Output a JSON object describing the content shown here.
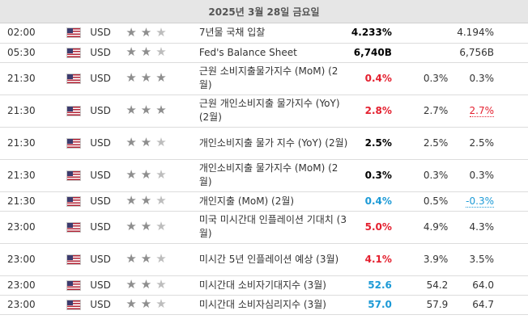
{
  "date_header": "2025년 3월 28일 금요일",
  "rows": [
    {
      "time": "02:00",
      "currency": "USD",
      "stars": 2,
      "event": "7년물 국채 입찰",
      "actual": "4.233%",
      "actual_color": "neutral",
      "forecast": "",
      "previous": "4.194%",
      "prev_style": "",
      "tall": false
    },
    {
      "time": "05:30",
      "currency": "USD",
      "stars": 2,
      "event": "Fed's Balance Sheet",
      "actual": "6,740B",
      "actual_color": "neutral",
      "forecast": "",
      "previous": "6,756B",
      "prev_style": "",
      "tall": false
    },
    {
      "time": "21:30",
      "currency": "USD",
      "stars": 3,
      "event": "근원 소비지출물가지수 (MoM) (2월)",
      "actual": "0.4%",
      "actual_color": "up",
      "forecast": "0.3%",
      "previous": "0.3%",
      "prev_style": "",
      "tall": true
    },
    {
      "time": "21:30",
      "currency": "USD",
      "stars": 3,
      "event": "근원 개인소비지출 물가지수 (YoY) (2월)",
      "actual": "2.8%",
      "actual_color": "up",
      "forecast": "2.7%",
      "previous": "2.7%",
      "prev_style": "revised-red",
      "tall": true
    },
    {
      "time": "21:30",
      "currency": "USD",
      "stars": 2,
      "event": "개인소비지출 물가 지수 (YoY) (2월)",
      "actual": "2.5%",
      "actual_color": "neutral",
      "forecast": "2.5%",
      "previous": "2.5%",
      "prev_style": "",
      "tall": true
    },
    {
      "time": "21:30",
      "currency": "USD",
      "stars": 2,
      "event": "개인소비지출 물가지수 (MoM) (2월)",
      "actual": "0.3%",
      "actual_color": "neutral",
      "forecast": "0.3%",
      "previous": "0.3%",
      "prev_style": "",
      "tall": true
    },
    {
      "time": "21:30",
      "currency": "USD",
      "stars": 2,
      "event": "개인지출 (MoM) (2월)",
      "actual": "0.4%",
      "actual_color": "down",
      "forecast": "0.5%",
      "previous": "-0.3%",
      "prev_style": "revised-blue",
      "tall": false
    },
    {
      "time": "23:00",
      "currency": "USD",
      "stars": 2,
      "event": "미국 미시간대 인플레이션 기대치 (3월)",
      "actual": "5.0%",
      "actual_color": "up",
      "forecast": "4.9%",
      "previous": "4.3%",
      "prev_style": "",
      "tall": true
    },
    {
      "time": "23:00",
      "currency": "USD",
      "stars": 2,
      "event": "미시간 5년 인플레이션 예상 (3월)",
      "actual": "4.1%",
      "actual_color": "up",
      "forecast": "3.9%",
      "previous": "3.5%",
      "prev_style": "",
      "tall": true
    },
    {
      "time": "23:00",
      "currency": "USD",
      "stars": 2,
      "event": "미시간대 소비자기대지수 (3월)",
      "actual": "52.6",
      "actual_color": "down",
      "forecast": "54.2",
      "previous": "64.0",
      "prev_style": "",
      "tall": false
    },
    {
      "time": "23:00",
      "currency": "USD",
      "stars": 2,
      "event": "미시간대 소비자심리지수 (3월)",
      "actual": "57.0",
      "actual_color": "down",
      "forecast": "57.9",
      "previous": "64.7",
      "prev_style": "",
      "tall": false
    }
  ]
}
